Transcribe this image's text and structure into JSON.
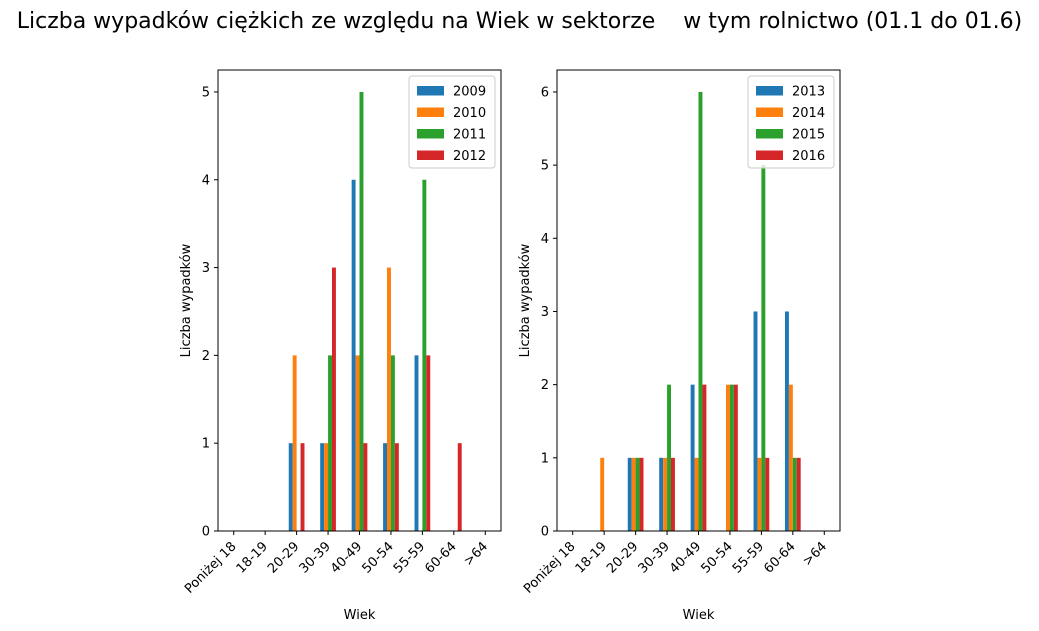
{
  "suptitle": "Liczba wypadków ciężkich ze względu na Wiek w sektorze    w tym rolnictwo (01.1 do 01.6)",
  "chart_data": [
    {
      "type": "bar",
      "xlabel": "Wiek",
      "ylabel": "Liczba wypadków",
      "categories": [
        "Poniżej 18",
        "18-19",
        "20-29",
        "30-39",
        "40-49",
        "50-54",
        "55-59",
        "60-64",
        ">64"
      ],
      "ylim": [
        0,
        5.25
      ],
      "yticks": [
        0,
        1,
        2,
        3,
        4,
        5
      ],
      "legend_position": "top-right",
      "series": [
        {
          "name": "2009",
          "color": "#1f77b4",
          "values": [
            0,
            0,
            1,
            1,
            4,
            1,
            2,
            0,
            0
          ]
        },
        {
          "name": "2010",
          "color": "#ff7f0e",
          "values": [
            0,
            0,
            2,
            1,
            2,
            3,
            0,
            0,
            0
          ]
        },
        {
          "name": "2011",
          "color": "#2ca02c",
          "values": [
            0,
            0,
            0,
            2,
            5,
            2,
            4,
            0,
            0
          ]
        },
        {
          "name": "2012",
          "color": "#d62728",
          "values": [
            0,
            0,
            1,
            3,
            1,
            1,
            2,
            1,
            0
          ]
        }
      ]
    },
    {
      "type": "bar",
      "xlabel": "Wiek",
      "ylabel": "Liczba wypadków",
      "categories": [
        "Poniżej 18",
        "18-19",
        "20-29",
        "30-39",
        "40-49",
        "50-54",
        "55-59",
        "60-64",
        ">64"
      ],
      "ylim": [
        0,
        6.3
      ],
      "yticks": [
        0,
        1,
        2,
        3,
        4,
        5,
        6
      ],
      "legend_position": "top-right",
      "series": [
        {
          "name": "2013",
          "color": "#1f77b4",
          "values": [
            0,
            0,
            1,
            1,
            2,
            0,
            3,
            3,
            0
          ]
        },
        {
          "name": "2014",
          "color": "#ff7f0e",
          "values": [
            0,
            1,
            1,
            1,
            1,
            2,
            1,
            2,
            0
          ]
        },
        {
          "name": "2015",
          "color": "#2ca02c",
          "values": [
            0,
            0,
            1,
            2,
            6,
            2,
            5,
            1,
            0
          ]
        },
        {
          "name": "2016",
          "color": "#d62728",
          "values": [
            0,
            0,
            1,
            1,
            2,
            2,
            1,
            1,
            0
          ]
        }
      ]
    }
  ]
}
